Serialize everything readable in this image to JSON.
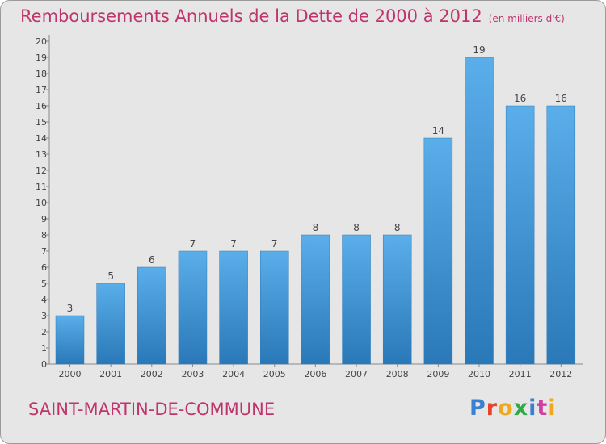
{
  "title": "Remboursements Annuels de la Dette de 2000 à 2012",
  "unit": "(en milliers d'€)",
  "commune": "SAINT-MARTIN-DE-COMMUNE",
  "logo": {
    "text": "Proxiti",
    "colors": [
      "#3a7fd0",
      "#e8432a",
      "#f2a81d",
      "#2faa46",
      "#3a7fd0",
      "#d23fa0",
      "#f2a81d"
    ]
  },
  "colors": {
    "title": "#c0346c",
    "bar_top": "#5aaeea",
    "bar_bottom": "#2a78b8",
    "background": "#e6e6e6"
  },
  "chart_data": {
    "type": "bar",
    "title": "Remboursements Annuels de la Dette de 2000 à 2012",
    "ylabel": "en milliers d'€",
    "categories": [
      "2000",
      "2001",
      "2002",
      "2003",
      "2004",
      "2005",
      "2006",
      "2007",
      "2008",
      "2009",
      "2010",
      "2011",
      "2012"
    ],
    "values": [
      3,
      5,
      6,
      7,
      7,
      7,
      8,
      8,
      8,
      14,
      19,
      16,
      16
    ],
    "ylim": [
      0,
      20
    ],
    "yticks": [
      0,
      1,
      2,
      3,
      4,
      5,
      6,
      7,
      8,
      9,
      10,
      11,
      12,
      13,
      14,
      15,
      16,
      17,
      18,
      19,
      20
    ],
    "grid": false,
    "legend": "none"
  }
}
